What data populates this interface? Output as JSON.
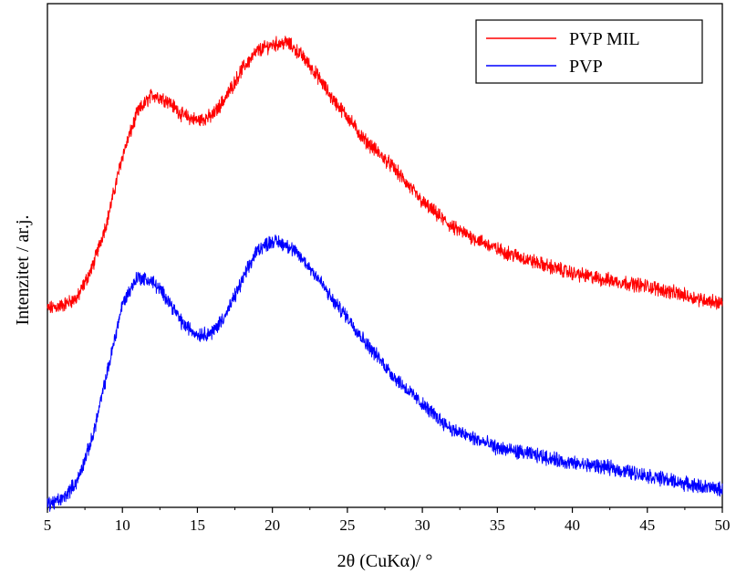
{
  "chart_data": {
    "type": "line",
    "xlabel": "2θ (CuKα)/ °",
    "ylabel": "Intenzitet / ar.j.",
    "xlim": [
      5,
      50
    ],
    "ylim": [
      0,
      100
    ],
    "x_ticks": [
      "5",
      "10",
      "15",
      "20",
      "25",
      "30",
      "35",
      "40",
      "45",
      "50"
    ],
    "y_tick_labels": "none",
    "grid": false,
    "legend_position": "top-right",
    "series": [
      {
        "name": "PVP MIL",
        "color": "#ff0000",
        "x": [
          5,
          6,
          7,
          8,
          9,
          10,
          11,
          12,
          13,
          14,
          15,
          16,
          17,
          18,
          19,
          20,
          21,
          22,
          23,
          24,
          25,
          26,
          28,
          30,
          32,
          35,
          38,
          40,
          42,
          45,
          48,
          50
        ],
        "y": [
          39.4,
          40.1,
          41.6,
          47.7,
          57.1,
          69.8,
          78.4,
          82.0,
          80.8,
          77.9,
          76.8,
          77.7,
          81.9,
          87.1,
          90.6,
          91.9,
          92.3,
          89.6,
          85.7,
          81.1,
          77.6,
          73.4,
          67.7,
          60.6,
          55.6,
          51.2,
          48.2,
          46.5,
          45.3,
          43.9,
          41.7,
          40.5
        ]
      },
      {
        "name": "PVP",
        "color": "#0000ff",
        "x": [
          5,
          6,
          7,
          8,
          9,
          10,
          11,
          12,
          13,
          14,
          15,
          16,
          17,
          18,
          19,
          20,
          21,
          22,
          23,
          24,
          25,
          26,
          28,
          30,
          32,
          35,
          38,
          40,
          42,
          45,
          48,
          50
        ],
        "y": [
          0.6,
          1.6,
          5.3,
          13.8,
          26.9,
          40.4,
          45.8,
          44.8,
          41.5,
          36.5,
          34.3,
          34.7,
          38.8,
          45.1,
          51.2,
          52.9,
          52.1,
          49.3,
          45.8,
          41.1,
          37.8,
          33.6,
          26.3,
          20.4,
          15.4,
          11.8,
          10.1,
          8.7,
          8.1,
          6.3,
          4.4,
          3.5
        ]
      }
    ]
  }
}
